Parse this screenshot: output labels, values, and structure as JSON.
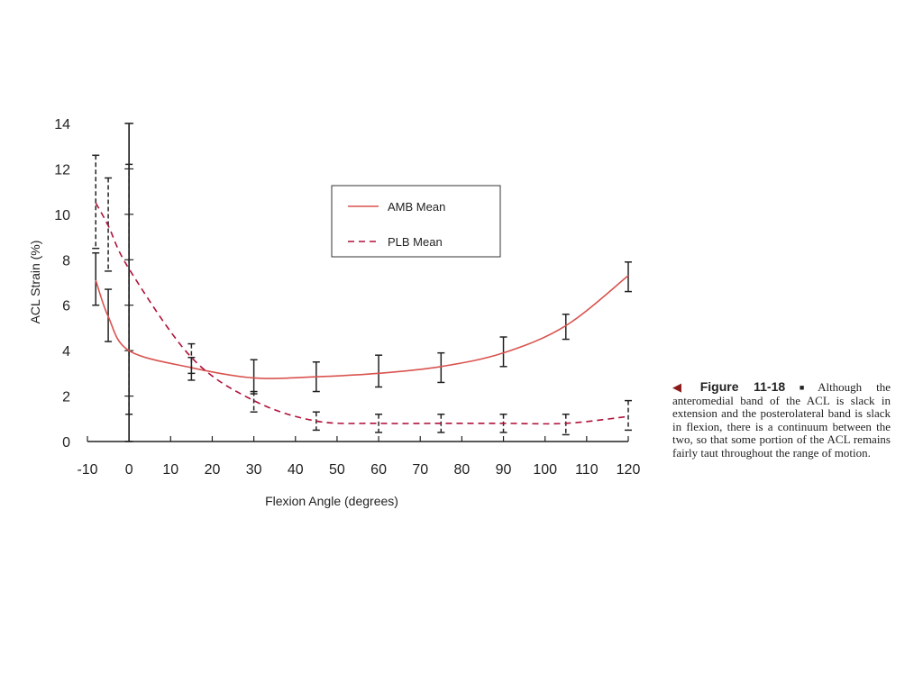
{
  "chart_data": {
    "type": "line",
    "title": "",
    "xlabel": "Flexion Angle (degrees)",
    "ylabel": "ACL Strain (%)",
    "xlim": [
      -10,
      120
    ],
    "ylim": [
      0,
      14
    ],
    "xticks": [
      -10,
      0,
      10,
      20,
      30,
      40,
      50,
      60,
      70,
      80,
      90,
      100,
      110,
      120
    ],
    "yticks": [
      0,
      2,
      4,
      6,
      8,
      10,
      12,
      14
    ],
    "grid": false,
    "legend_position": "top-center",
    "series": [
      {
        "name": "AMB Mean",
        "style": "solid",
        "color": "#d9534f",
        "curve": [
          [
            -8,
            7.1
          ],
          [
            -5,
            5.5
          ],
          [
            0,
            4.0
          ],
          [
            15,
            3.25
          ],
          [
            30,
            2.8
          ],
          [
            45,
            2.85
          ],
          [
            60,
            3.0
          ],
          [
            75,
            3.3
          ],
          [
            90,
            3.9
          ],
          [
            105,
            5.1
          ],
          [
            120,
            7.3
          ]
        ],
        "error_bars": [
          {
            "x": -8,
            "low": 6.0,
            "high": 8.3
          },
          {
            "x": -5,
            "low": 4.4,
            "high": 6.7
          },
          {
            "x": 0,
            "low": 0.0,
            "high": 14.0
          },
          {
            "x": 15,
            "low": 2.7,
            "high": 3.7
          },
          {
            "x": 30,
            "low": 2.1,
            "high": 3.6
          },
          {
            "x": 45,
            "low": 2.2,
            "high": 3.5
          },
          {
            "x": 60,
            "low": 2.4,
            "high": 3.8
          },
          {
            "x": 75,
            "low": 2.6,
            "high": 3.9
          },
          {
            "x": 90,
            "low": 3.3,
            "high": 4.6
          },
          {
            "x": 105,
            "low": 4.5,
            "high": 5.6
          },
          {
            "x": 120,
            "low": 6.6,
            "high": 7.9
          }
        ]
      },
      {
        "name": "PLB Mean",
        "style": "dashed",
        "color": "#b0123a",
        "curve": [
          [
            -8,
            10.5
          ],
          [
            -5,
            9.5
          ],
          [
            0,
            7.6
          ],
          [
            15,
            3.7
          ],
          [
            30,
            1.8
          ],
          [
            45,
            0.9
          ],
          [
            60,
            0.8
          ],
          [
            75,
            0.8
          ],
          [
            90,
            0.8
          ],
          [
            105,
            0.8
          ],
          [
            120,
            1.1
          ]
        ],
        "error_bars": [
          {
            "x": -8,
            "low": 8.5,
            "high": 12.6
          },
          {
            "x": -5,
            "low": 7.5,
            "high": 11.6
          },
          {
            "x": 0,
            "low": 1.2,
            "high": 12.2
          },
          {
            "x": 15,
            "low": 3.0,
            "high": 4.3
          },
          {
            "x": 30,
            "low": 1.3,
            "high": 2.2
          },
          {
            "x": 45,
            "low": 0.5,
            "high": 1.3
          },
          {
            "x": 60,
            "low": 0.4,
            "high": 1.2
          },
          {
            "x": 75,
            "low": 0.4,
            "high": 1.2
          },
          {
            "x": 90,
            "low": 0.4,
            "high": 1.2
          },
          {
            "x": 105,
            "low": 0.3,
            "high": 1.2
          },
          {
            "x": 120,
            "low": 0.5,
            "high": 1.8
          }
        ]
      }
    ]
  },
  "caption": {
    "label": "Figure 11-18",
    "text": "Although the anteromedial band of the ACL is slack in extension and the posterolateral band is slack in flexion, there is a continuum between the two, so that some portion of the ACL remains fairly taut throughout the range of motion."
  }
}
